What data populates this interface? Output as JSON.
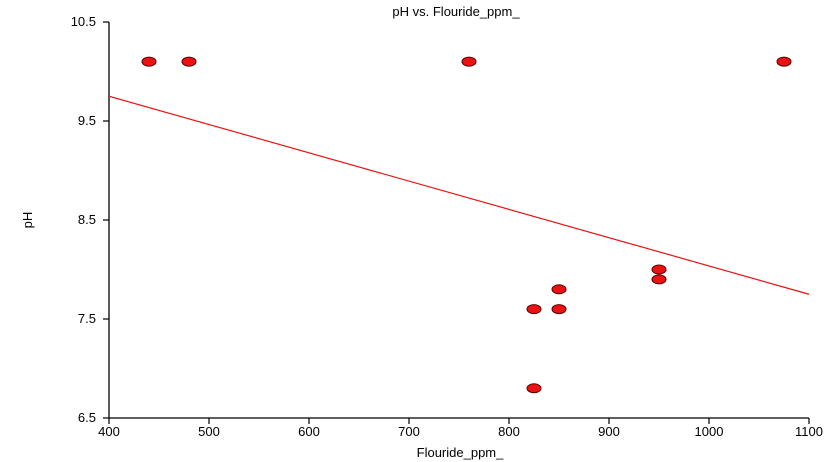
{
  "chart_data": {
    "type": "scatter",
    "title": "pH vs. Flouride_ppm_",
    "xlabel": "Flouride_ppm_",
    "ylabel": "pH",
    "xlim": [
      400,
      1100
    ],
    "ylim": [
      6.5,
      10.5
    ],
    "x_ticks": [
      400,
      500,
      600,
      700,
      800,
      900,
      1000,
      1100
    ],
    "y_ticks": [
      6.5,
      7.5,
      8.5,
      9.5,
      10.5
    ],
    "x_tick_labels": [
      "400",
      "500",
      "600",
      "700",
      "800",
      "900",
      "1000",
      "1100"
    ],
    "y_tick_labels": [
      "6.5",
      "7.5",
      "8.5",
      "9.5",
      "10.5"
    ],
    "grid": false,
    "legend": "none",
    "series": [
      {
        "points": [
          {
            "x": 440,
            "y": 10.1
          },
          {
            "x": 480,
            "y": 10.1
          },
          {
            "x": 760,
            "y": 10.1
          },
          {
            "x": 1075,
            "y": 10.1
          },
          {
            "x": 825,
            "y": 7.6
          },
          {
            "x": 825,
            "y": 6.8
          },
          {
            "x": 850,
            "y": 7.8
          },
          {
            "x": 850,
            "y": 7.6
          },
          {
            "x": 950,
            "y": 8.0
          },
          {
            "x": 950,
            "y": 7.9
          }
        ],
        "color": "#ee1111",
        "stroke": "#550000"
      }
    ],
    "trendline": {
      "points": [
        {
          "x": 400,
          "y": 9.75
        },
        {
          "x": 1100,
          "y": 7.75
        }
      ],
      "color": "#ee1111"
    }
  }
}
